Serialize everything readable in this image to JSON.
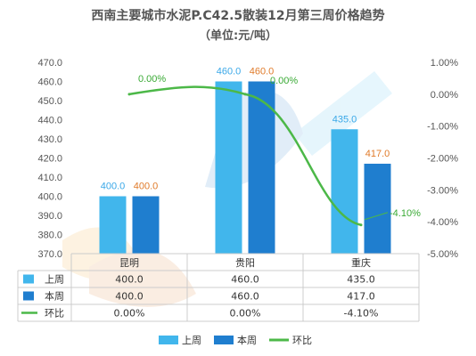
{
  "chart_data": {
    "type": "bar",
    "title": "西南主要城市水泥P.C42.5散装12月第三周价格趋势",
    "subtitle": "（单位:元/吨）",
    "categories": [
      "昆明",
      "贵阳",
      "重庆"
    ],
    "series": [
      {
        "name": "上周",
        "type": "bar",
        "axis": "left",
        "values": [
          400.0,
          460.0,
          435.0
        ],
        "labels": [
          "400.0",
          "460.0",
          "435.0"
        ],
        "color": "#41b6ec"
      },
      {
        "name": "本周",
        "type": "bar",
        "axis": "left",
        "values": [
          400.0,
          460.0,
          417.0
        ],
        "labels": [
          "400.0",
          "460.0",
          "417.0"
        ],
        "color": "#1f7ecf"
      },
      {
        "name": "环比",
        "type": "line",
        "axis": "right",
        "values": [
          0.0,
          0.0,
          -4.1
        ],
        "labels": [
          "0.00%",
          "0.00%",
          "-4.10%"
        ],
        "color": "#4cb848"
      }
    ],
    "y_left": {
      "range": [
        370,
        470
      ],
      "ticks": [
        "470.0",
        "460.0",
        "450.0",
        "440.0",
        "430.0",
        "420.0",
        "410.0",
        "400.0",
        "390.0",
        "380.0",
        "370.0"
      ]
    },
    "y_right": {
      "range": [
        -5,
        1
      ],
      "ticks": [
        "1.00%",
        "0.00%",
        "-1.00%",
        "-2.00%",
        "-3.00%",
        "-4.00%",
        "-5.00%"
      ]
    },
    "table": {
      "rows": [
        {
          "name": "上周",
          "cells": [
            "400.0",
            "460.0",
            "435.0"
          ]
        },
        {
          "name": "本周",
          "cells": [
            "400.0",
            "460.0",
            "417.0"
          ]
        },
        {
          "name": "环比",
          "cells": [
            "0.00%",
            "0.00%",
            "-4.10%"
          ]
        }
      ]
    },
    "legend": {
      "placement": "bottom",
      "items": [
        "上周",
        "本周",
        "环比"
      ]
    },
    "grid": false
  },
  "colors": {
    "prev": "#41b6ec",
    "cur": "#1f7ecf",
    "ratio": "#4cb848",
    "label_prev": "#3aa8e8",
    "label_cur": "#e07b2a",
    "label_ratio": "#3aaa35"
  }
}
